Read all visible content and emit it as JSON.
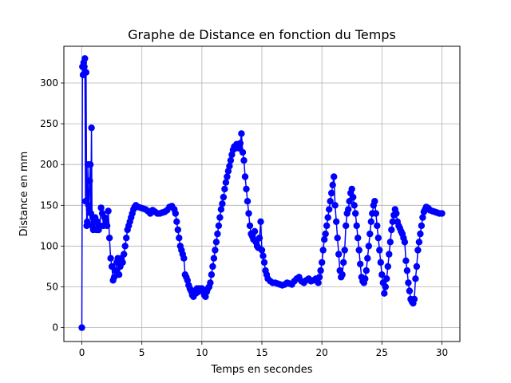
{
  "chart_data": {
    "type": "line",
    "title": "Graphe de Distance en fonction du Temps",
    "xlabel": "Temps en secondes",
    "ylabel": "Distance en mm",
    "xlim": [
      -1.5,
      31.5
    ],
    "ylim": [
      -17,
      345
    ],
    "xticks": [
      0,
      5,
      10,
      15,
      20,
      25,
      30
    ],
    "yticks": [
      0,
      50,
      100,
      150,
      200,
      250,
      300
    ],
    "xtick_labels": [
      "0",
      "5",
      "10",
      "15",
      "20",
      "25",
      "30"
    ],
    "ytick_labels": [
      "0",
      "50",
      "100",
      "150",
      "200",
      "250",
      "300"
    ],
    "grid": true,
    "series": [
      {
        "color": "#0000ff",
        "marker": "circle",
        "points": [
          [
            0.0,
            0
          ],
          [
            0.05,
            320
          ],
          [
            0.1,
            310
          ],
          [
            0.15,
            325
          ],
          [
            0.2,
            320
          ],
          [
            0.25,
            330
          ],
          [
            0.3,
            155
          ],
          [
            0.35,
            313
          ],
          [
            0.4,
            125
          ],
          [
            0.45,
            130
          ],
          [
            0.5,
            200
          ],
          [
            0.55,
            150
          ],
          [
            0.6,
            145
          ],
          [
            0.65,
            180
          ],
          [
            0.7,
            200
          ],
          [
            0.75,
            140
          ],
          [
            0.8,
            245
          ],
          [
            0.85,
            125
          ],
          [
            0.9,
            135
          ],
          [
            0.95,
            120
          ],
          [
            1.0,
            130
          ],
          [
            1.1,
            135
          ],
          [
            1.2,
            120
          ],
          [
            1.3,
            130
          ],
          [
            1.4,
            120
          ],
          [
            1.5,
            125
          ],
          [
            1.6,
            147
          ],
          [
            1.7,
            140
          ],
          [
            1.8,
            125
          ],
          [
            1.9,
            135
          ],
          [
            2.0,
            130
          ],
          [
            2.1,
            125
          ],
          [
            2.2,
            143
          ],
          [
            2.3,
            110
          ],
          [
            2.4,
            85
          ],
          [
            2.5,
            75
          ],
          [
            2.6,
            58
          ],
          [
            2.7,
            62
          ],
          [
            2.8,
            70
          ],
          [
            2.9,
            80
          ],
          [
            3.0,
            85
          ],
          [
            3.1,
            65
          ],
          [
            3.2,
            75
          ],
          [
            3.3,
            85
          ],
          [
            3.4,
            80
          ],
          [
            3.5,
            90
          ],
          [
            3.6,
            100
          ],
          [
            3.7,
            110
          ],
          [
            3.8,
            120
          ],
          [
            3.9,
            125
          ],
          [
            4.0,
            130
          ],
          [
            4.1,
            135
          ],
          [
            4.2,
            140
          ],
          [
            4.3,
            145
          ],
          [
            4.4,
            148
          ],
          [
            4.5,
            150
          ],
          [
            4.7,
            148
          ],
          [
            4.9,
            147
          ],
          [
            5.1,
            146
          ],
          [
            5.3,
            145
          ],
          [
            5.5,
            143
          ],
          [
            5.7,
            140
          ],
          [
            5.9,
            144
          ],
          [
            6.1,
            142
          ],
          [
            6.3,
            140
          ],
          [
            6.5,
            140
          ],
          [
            6.7,
            141
          ],
          [
            6.9,
            142
          ],
          [
            7.1,
            144
          ],
          [
            7.3,
            148
          ],
          [
            7.5,
            149
          ],
          [
            7.7,
            145
          ],
          [
            7.8,
            140
          ],
          [
            7.9,
            130
          ],
          [
            8.0,
            120
          ],
          [
            8.1,
            110
          ],
          [
            8.2,
            100
          ],
          [
            8.3,
            95
          ],
          [
            8.4,
            90
          ],
          [
            8.5,
            85
          ],
          [
            8.6,
            65
          ],
          [
            8.7,
            62
          ],
          [
            8.8,
            58
          ],
          [
            8.9,
            52
          ],
          [
            9.0,
            48
          ],
          [
            9.1,
            45
          ],
          [
            9.2,
            40
          ],
          [
            9.3,
            38
          ],
          [
            9.4,
            45
          ],
          [
            9.5,
            42
          ],
          [
            9.6,
            48
          ],
          [
            9.7,
            44
          ],
          [
            9.8,
            48
          ],
          [
            9.9,
            46
          ],
          [
            10.0,
            48
          ],
          [
            10.1,
            45
          ],
          [
            10.2,
            40
          ],
          [
            10.3,
            38
          ],
          [
            10.4,
            44
          ],
          [
            10.5,
            48
          ],
          [
            10.6,
            50
          ],
          [
            10.7,
            55
          ],
          [
            10.8,
            65
          ],
          [
            10.9,
            75
          ],
          [
            11.0,
            85
          ],
          [
            11.1,
            95
          ],
          [
            11.2,
            105
          ],
          [
            11.3,
            115
          ],
          [
            11.4,
            125
          ],
          [
            11.5,
            135
          ],
          [
            11.6,
            145
          ],
          [
            11.7,
            152
          ],
          [
            11.8,
            160
          ],
          [
            11.9,
            170
          ],
          [
            12.0,
            178
          ],
          [
            12.1,
            185
          ],
          [
            12.2,
            192
          ],
          [
            12.3,
            198
          ],
          [
            12.4,
            205
          ],
          [
            12.5,
            212
          ],
          [
            12.6,
            218
          ],
          [
            12.7,
            222
          ],
          [
            12.8,
            220
          ],
          [
            12.9,
            225
          ],
          [
            13.0,
            222
          ],
          [
            13.1,
            220
          ],
          [
            13.2,
            226
          ],
          [
            13.3,
            238
          ],
          [
            13.4,
            215
          ],
          [
            13.5,
            205
          ],
          [
            13.6,
            185
          ],
          [
            13.7,
            170
          ],
          [
            13.8,
            155
          ],
          [
            13.9,
            140
          ],
          [
            14.0,
            125
          ],
          [
            14.1,
            115
          ],
          [
            14.2,
            112
          ],
          [
            14.3,
            108
          ],
          [
            14.4,
            118
          ],
          [
            14.5,
            105
          ],
          [
            14.6,
            100
          ],
          [
            14.7,
            98
          ],
          [
            14.8,
            110
          ],
          [
            14.9,
            130
          ],
          [
            15.0,
            95
          ],
          [
            15.1,
            88
          ],
          [
            15.2,
            80
          ],
          [
            15.3,
            70
          ],
          [
            15.4,
            65
          ],
          [
            15.5,
            60
          ],
          [
            15.7,
            57
          ],
          [
            15.9,
            55
          ],
          [
            16.1,
            55
          ],
          [
            16.3,
            54
          ],
          [
            16.5,
            53
          ],
          [
            16.7,
            52
          ],
          [
            16.9,
            53
          ],
          [
            17.1,
            55
          ],
          [
            17.3,
            54
          ],
          [
            17.5,
            53
          ],
          [
            17.7,
            57
          ],
          [
            17.9,
            60
          ],
          [
            18.1,
            62
          ],
          [
            18.3,
            57
          ],
          [
            18.5,
            55
          ],
          [
            18.7,
            58
          ],
          [
            18.9,
            60
          ],
          [
            19.1,
            57
          ],
          [
            19.3,
            58
          ],
          [
            19.5,
            60
          ],
          [
            19.7,
            55
          ],
          [
            19.8,
            62
          ],
          [
            19.9,
            70
          ],
          [
            20.0,
            80
          ],
          [
            20.1,
            95
          ],
          [
            20.2,
            108
          ],
          [
            20.3,
            115
          ],
          [
            20.4,
            125
          ],
          [
            20.5,
            135
          ],
          [
            20.6,
            145
          ],
          [
            20.7,
            155
          ],
          [
            20.8,
            165
          ],
          [
            20.9,
            175
          ],
          [
            21.0,
            185
          ],
          [
            21.1,
            150
          ],
          [
            21.2,
            130
          ],
          [
            21.3,
            110
          ],
          [
            21.4,
            90
          ],
          [
            21.5,
            70
          ],
          [
            21.6,
            62
          ],
          [
            21.7,
            65
          ],
          [
            21.8,
            80
          ],
          [
            21.9,
            95
          ],
          [
            22.0,
            125
          ],
          [
            22.1,
            140
          ],
          [
            22.2,
            145
          ],
          [
            22.3,
            155
          ],
          [
            22.4,
            165
          ],
          [
            22.5,
            170
          ],
          [
            22.6,
            160
          ],
          [
            22.7,
            150
          ],
          [
            22.8,
            140
          ],
          [
            22.9,
            125
          ],
          [
            23.0,
            110
          ],
          [
            23.1,
            95
          ],
          [
            23.2,
            78
          ],
          [
            23.3,
            62
          ],
          [
            23.4,
            57
          ],
          [
            23.5,
            55
          ],
          [
            23.6,
            60
          ],
          [
            23.7,
            70
          ],
          [
            23.8,
            85
          ],
          [
            23.9,
            100
          ],
          [
            24.0,
            115
          ],
          [
            24.1,
            130
          ],
          [
            24.2,
            140
          ],
          [
            24.3,
            150
          ],
          [
            24.4,
            155
          ],
          [
            24.5,
            140
          ],
          [
            24.6,
            125
          ],
          [
            24.7,
            110
          ],
          [
            24.8,
            95
          ],
          [
            24.9,
            80
          ],
          [
            25.0,
            65
          ],
          [
            25.1,
            55
          ],
          [
            25.2,
            42
          ],
          [
            25.3,
            50
          ],
          [
            25.4,
            60
          ],
          [
            25.5,
            75
          ],
          [
            25.6,
            90
          ],
          [
            25.7,
            105
          ],
          [
            25.8,
            120
          ],
          [
            25.9,
            130
          ],
          [
            26.0,
            138
          ],
          [
            26.1,
            145
          ],
          [
            26.2,
            140
          ],
          [
            26.3,
            130
          ],
          [
            26.4,
            125
          ],
          [
            26.5,
            122
          ],
          [
            26.6,
            118
          ],
          [
            26.7,
            115
          ],
          [
            26.8,
            110
          ],
          [
            26.9,
            105
          ],
          [
            27.0,
            82
          ],
          [
            27.1,
            70
          ],
          [
            27.2,
            55
          ],
          [
            27.3,
            45
          ],
          [
            27.4,
            35
          ],
          [
            27.5,
            32
          ],
          [
            27.6,
            30
          ],
          [
            27.7,
            35
          ],
          [
            27.8,
            60
          ],
          [
            27.9,
            75
          ],
          [
            28.0,
            95
          ],
          [
            28.1,
            105
          ],
          [
            28.2,
            115
          ],
          [
            28.3,
            125
          ],
          [
            28.4,
            135
          ],
          [
            28.5,
            142
          ],
          [
            28.6,
            145
          ],
          [
            28.7,
            148
          ],
          [
            28.8,
            147
          ],
          [
            28.9,
            146
          ],
          [
            29.0,
            144
          ],
          [
            29.2,
            143
          ],
          [
            29.4,
            142
          ],
          [
            29.6,
            141
          ],
          [
            29.8,
            140
          ],
          [
            30.0,
            140
          ]
        ]
      }
    ]
  }
}
